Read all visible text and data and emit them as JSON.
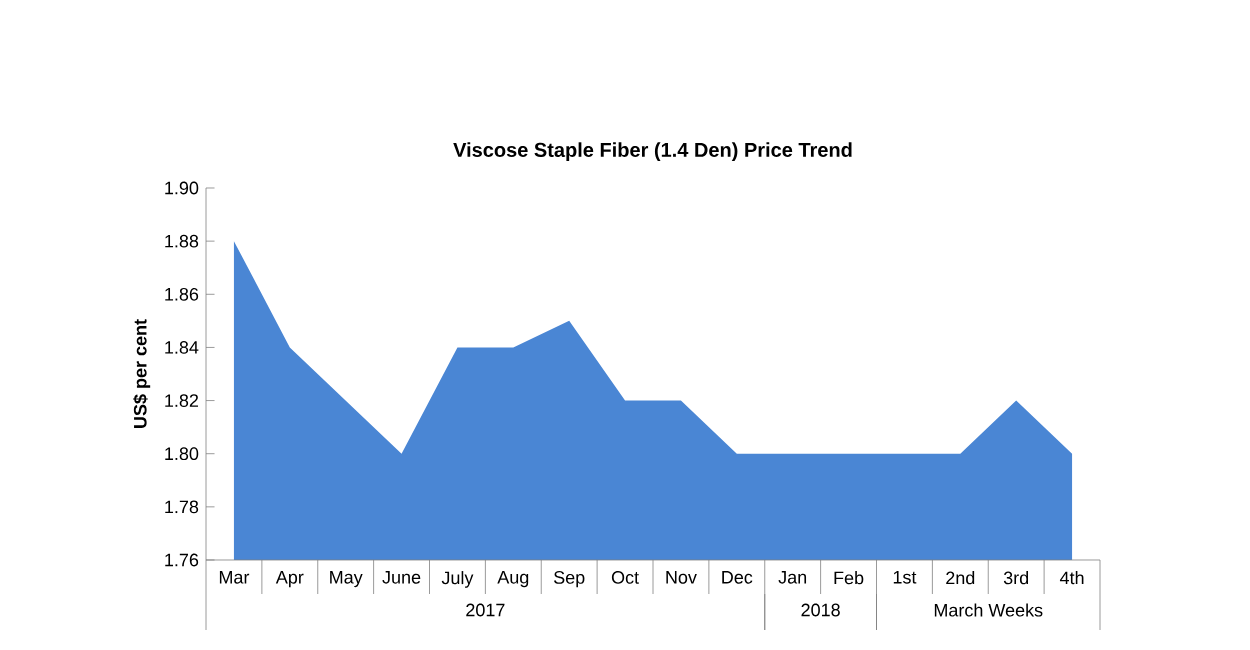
{
  "chart_data": {
    "type": "area",
    "title": "Viscose Staple Fiber (1.4 Den) Price Trend",
    "ylabel": "US$ per cent",
    "categories": [
      "Mar",
      "Apr",
      "May",
      "June",
      "July",
      "Aug",
      "Sep",
      "Oct",
      "Nov",
      "Dec",
      "Jan",
      "Feb",
      "1st",
      "2nd",
      "3rd",
      "4th"
    ],
    "series": [
      {
        "color": "#4a86d4",
        "values": [
          1.88,
          1.84,
          1.82,
          1.8,
          1.84,
          1.84,
          1.85,
          1.82,
          1.82,
          1.8,
          1.8,
          1.8,
          1.8,
          1.8,
          1.82,
          1.8
        ]
      }
    ],
    "ylim": [
      1.76,
      1.9
    ],
    "yticks": [
      {
        "value": 1.76,
        "label": "1.76"
      },
      {
        "value": 1.78,
        "label": "1.78"
      },
      {
        "value": 1.8,
        "label": "1.80"
      },
      {
        "value": 1.82,
        "label": "1.82"
      },
      {
        "value": 1.84,
        "label": "1.84"
      },
      {
        "value": 1.86,
        "label": "1.86"
      },
      {
        "value": 1.88,
        "label": "1.88"
      },
      {
        "value": 1.9,
        "label": "1.90"
      }
    ],
    "annotations": [
      "2017",
      "2018",
      "March Weeks"
    ]
  }
}
